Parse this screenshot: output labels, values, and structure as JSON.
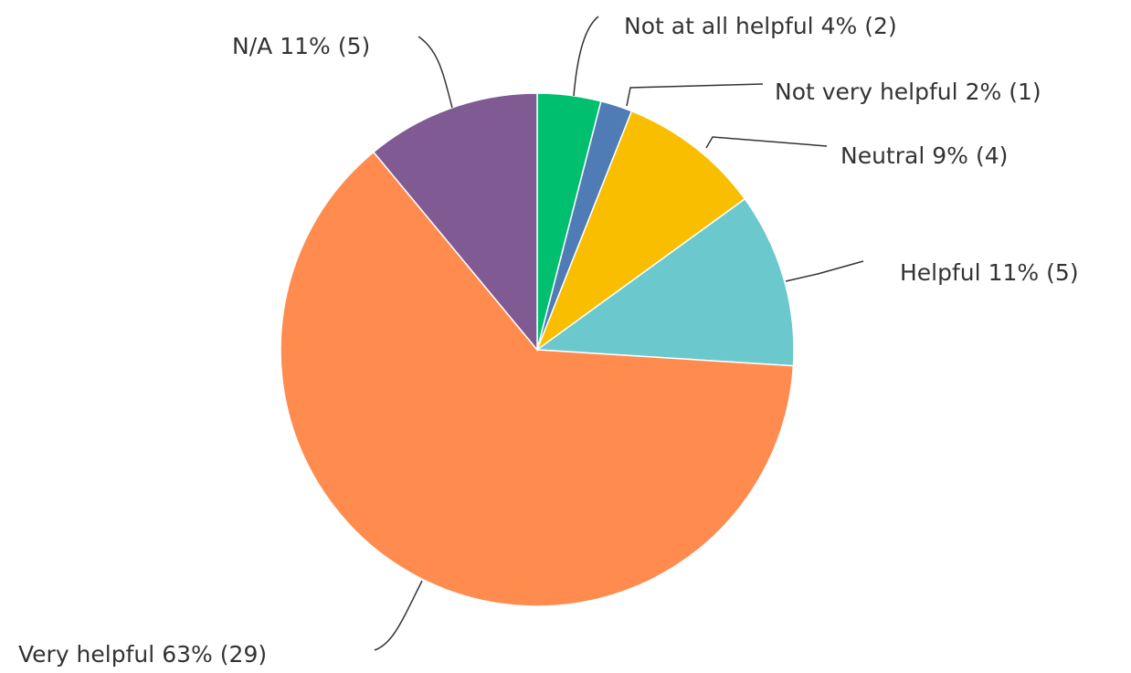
{
  "chart_data": {
    "type": "pie",
    "categories": [
      "Not at all helpful",
      "Not very helpful",
      "Neutral",
      "Helpful",
      "Very helpful",
      "N/A"
    ],
    "values": [
      4,
      2,
      9,
      11,
      63,
      11
    ],
    "value_labels": [
      "4%",
      "2%",
      "9%",
      "11%",
      "63%",
      "11%"
    ],
    "counts": [
      2,
      1,
      4,
      5,
      29,
      5
    ],
    "count_labels": [
      "(2)",
      "(1)",
      "(4)",
      "(5)",
      "(29)",
      "(5)"
    ],
    "colors": [
      "#00bf6f",
      "#507cb6",
      "#f9be00",
      "#6bc8cd",
      "#ff8b4f",
      "#7f5a93"
    ]
  }
}
